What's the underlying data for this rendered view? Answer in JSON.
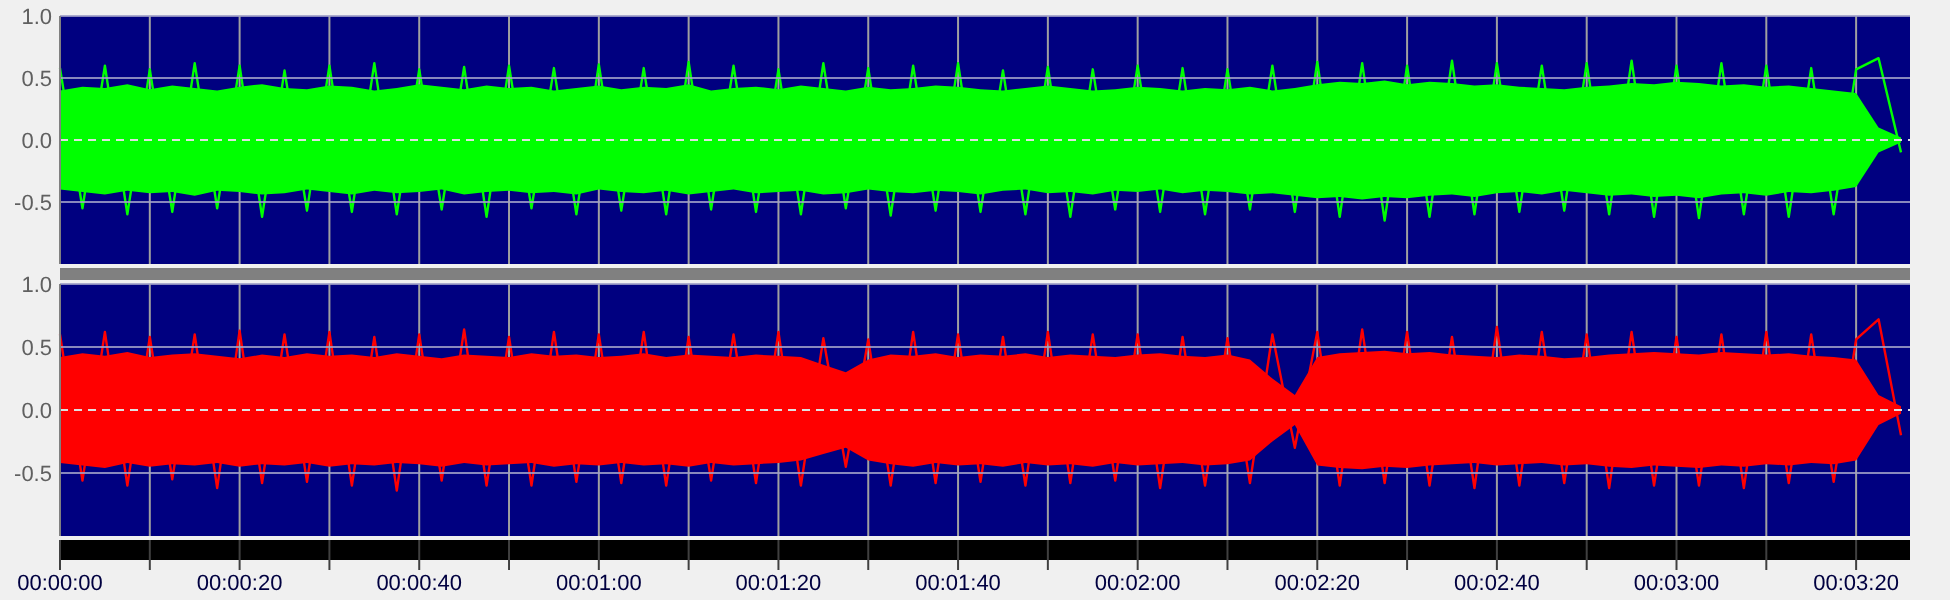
{
  "chart_data": [
    {
      "type": "line",
      "xlim": [
        0,
        206
      ],
      "ylim": [
        -1,
        1
      ],
      "yticks": [
        {
          "value": 1,
          "label": "1.0"
        },
        {
          "value": 0.5,
          "label": "0.5"
        },
        {
          "value": 0,
          "label": "0.0"
        },
        {
          "value": -0.5,
          "label": "-0.5"
        }
      ],
      "xticks": [
        {
          "value": 0,
          "label": null
        },
        {
          "value": 10,
          "label": null
        },
        {
          "value": 20,
          "label": null
        },
        {
          "value": 30,
          "label": null
        },
        {
          "value": 40,
          "label": null
        },
        {
          "value": 50,
          "label": null
        },
        {
          "value": 60,
          "label": null
        },
        {
          "value": 70,
          "label": null
        },
        {
          "value": 80,
          "label": null
        },
        {
          "value": 90,
          "label": null
        },
        {
          "value": 100,
          "label": null
        },
        {
          "value": 110,
          "label": null
        },
        {
          "value": 120,
          "label": null
        },
        {
          "value": 130,
          "label": null
        },
        {
          "value": 140,
          "label": null
        },
        {
          "value": 150,
          "label": null
        },
        {
          "value": 160,
          "label": null
        },
        {
          "value": 170,
          "label": null
        },
        {
          "value": 180,
          "label": null
        },
        {
          "value": 190,
          "label": null
        },
        {
          "value": 200,
          "label": null
        }
      ],
      "grid": true,
      "tick_labels": "y",
      "ref_lines": [
        {
          "axis": "y",
          "value": 0,
          "color": "#e0e0e0",
          "line_style": "dashed"
        }
      ],
      "series": [
        {
          "color": "#00ff00",
          "x": [
            0,
            2.5,
            5,
            7.5,
            10,
            12.5,
            15,
            17.5,
            20,
            22.5,
            25,
            27.5,
            30,
            32.5,
            35,
            37.5,
            40,
            42.5,
            45,
            47.5,
            50,
            52.5,
            55,
            57.5,
            60,
            62.5,
            65,
            67.5,
            70,
            72.5,
            75,
            77.5,
            80,
            82.5,
            85,
            87.5,
            90,
            92.5,
            95,
            97.5,
            100,
            102.5,
            105,
            107.5,
            110,
            112.5,
            115,
            117.5,
            120,
            122.5,
            125,
            127.5,
            130,
            132.5,
            135,
            137.5,
            140,
            142.5,
            145,
            147.5,
            150,
            152.5,
            155,
            157.5,
            160,
            162.5,
            165,
            167.5,
            170,
            172.5,
            175,
            177.5,
            180,
            182.5,
            185,
            187.5,
            190,
            192.5,
            195,
            197.5,
            200,
            202.5,
            205
          ],
          "values": [
            0.58,
            -0.55,
            0.6,
            -0.6,
            0.57,
            -0.58,
            0.62,
            -0.55,
            0.6,
            -0.62,
            0.56,
            -0.57,
            0.6,
            -0.58,
            0.62,
            -0.6,
            0.57,
            -0.56,
            0.59,
            -0.62,
            0.6,
            -0.55,
            0.58,
            -0.6,
            0.61,
            -0.57,
            0.58,
            -0.6,
            0.63,
            -0.56,
            0.6,
            -0.58,
            0.57,
            -0.6,
            0.62,
            -0.55,
            0.58,
            -0.61,
            0.6,
            -0.57,
            0.62,
            -0.58,
            0.56,
            -0.6,
            0.59,
            -0.62,
            0.57,
            -0.56,
            0.6,
            -0.58,
            0.58,
            -0.6,
            0.57,
            -0.56,
            0.6,
            -0.58,
            0.63,
            -0.62,
            0.62,
            -0.65,
            0.6,
            -0.62,
            0.64,
            -0.6,
            0.62,
            -0.58,
            0.6,
            -0.57,
            0.62,
            -0.6,
            0.64,
            -0.62,
            0.6,
            -0.63,
            0.62,
            -0.6,
            0.6,
            -0.62,
            0.58,
            -0.6,
            0.57,
            0.66,
            -0.1
          ],
          "upper": [
            0.4,
            0.43,
            0.42,
            0.45,
            0.41,
            0.44,
            0.42,
            0.4,
            0.43,
            0.45,
            0.42,
            0.41,
            0.44,
            0.43,
            0.4,
            0.42,
            0.45,
            0.43,
            0.41,
            0.44,
            0.42,
            0.43,
            0.4,
            0.42,
            0.44,
            0.41,
            0.43,
            0.42,
            0.45,
            0.4,
            0.42,
            0.43,
            0.41,
            0.44,
            0.42,
            0.4,
            0.43,
            0.41,
            0.42,
            0.44,
            0.43,
            0.41,
            0.4,
            0.42,
            0.44,
            0.42,
            0.4,
            0.41,
            0.43,
            0.42,
            0.4,
            0.42,
            0.41,
            0.43,
            0.4,
            0.42,
            0.45,
            0.47,
            0.46,
            0.48,
            0.45,
            0.47,
            0.46,
            0.44,
            0.45,
            0.43,
            0.42,
            0.41,
            0.43,
            0.44,
            0.46,
            0.45,
            0.47,
            0.46,
            0.44,
            0.45,
            0.43,
            0.44,
            0.42,
            0.4,
            0.38,
            0.1,
            0.02
          ],
          "lower": [
            -0.4,
            -0.42,
            -0.44,
            -0.41,
            -0.43,
            -0.42,
            -0.45,
            -0.41,
            -0.42,
            -0.44,
            -0.43,
            -0.4,
            -0.42,
            -0.44,
            -0.41,
            -0.43,
            -0.42,
            -0.4,
            -0.44,
            -0.42,
            -0.41,
            -0.43,
            -0.42,
            -0.44,
            -0.4,
            -0.42,
            -0.43,
            -0.41,
            -0.44,
            -0.42,
            -0.4,
            -0.43,
            -0.42,
            -0.41,
            -0.44,
            -0.43,
            -0.4,
            -0.42,
            -0.43,
            -0.41,
            -0.42,
            -0.44,
            -0.41,
            -0.4,
            -0.43,
            -0.42,
            -0.44,
            -0.41,
            -0.42,
            -0.4,
            -0.43,
            -0.41,
            -0.42,
            -0.44,
            -0.43,
            -0.45,
            -0.47,
            -0.46,
            -0.48,
            -0.46,
            -0.47,
            -0.45,
            -0.44,
            -0.46,
            -0.43,
            -0.42,
            -0.44,
            -0.41,
            -0.43,
            -0.45,
            -0.44,
            -0.46,
            -0.45,
            -0.47,
            -0.44,
            -0.43,
            -0.45,
            -0.42,
            -0.43,
            -0.41,
            -0.38,
            -0.1,
            -0.02
          ]
        }
      ]
    },
    {
      "type": "line",
      "xlim": [
        0,
        206
      ],
      "ylim": [
        -1,
        1
      ],
      "yticks": [
        {
          "value": 1,
          "label": "1.0"
        },
        {
          "value": 0.5,
          "label": "0.5"
        },
        {
          "value": 0,
          "label": "0.0"
        },
        {
          "value": -0.5,
          "label": "-0.5"
        }
      ],
      "xticks": [
        {
          "value": 0,
          "label": "00:00:00"
        },
        {
          "value": 10,
          "label": null
        },
        {
          "value": 20,
          "label": "00:00:20"
        },
        {
          "value": 30,
          "label": null
        },
        {
          "value": 40,
          "label": "00:00:40"
        },
        {
          "value": 50,
          "label": null
        },
        {
          "value": 60,
          "label": "00:01:00"
        },
        {
          "value": 70,
          "label": null
        },
        {
          "value": 80,
          "label": "00:01:20"
        },
        {
          "value": 90,
          "label": null
        },
        {
          "value": 100,
          "label": "00:01:40"
        },
        {
          "value": 110,
          "label": null
        },
        {
          "value": 120,
          "label": "00:02:00"
        },
        {
          "value": 130,
          "label": null
        },
        {
          "value": 140,
          "label": "00:02:20"
        },
        {
          "value": 150,
          "label": null
        },
        {
          "value": 160,
          "label": "00:02:40"
        },
        {
          "value": 170,
          "label": null
        },
        {
          "value": 180,
          "label": "00:03:00"
        },
        {
          "value": 190,
          "label": null
        },
        {
          "value": 200,
          "label": "00:03:20"
        }
      ],
      "grid": true,
      "ref_lines": [
        {
          "axis": "y",
          "value": 0,
          "color": "#e0e0e0",
          "line_style": "dashed"
        }
      ],
      "series": [
        {
          "color": "#ff0000",
          "x": [
            0,
            2.5,
            5,
            7.5,
            10,
            12.5,
            15,
            17.5,
            20,
            22.5,
            25,
            27.5,
            30,
            32.5,
            35,
            37.5,
            40,
            42.5,
            45,
            47.5,
            50,
            52.5,
            55,
            57.5,
            60,
            62.5,
            65,
            67.5,
            70,
            72.5,
            75,
            77.5,
            80,
            82.5,
            85,
            87.5,
            90,
            92.5,
            95,
            97.5,
            100,
            102.5,
            105,
            107.5,
            110,
            112.5,
            115,
            117.5,
            120,
            122.5,
            125,
            127.5,
            130,
            132.5,
            135,
            137.5,
            140,
            142.5,
            145,
            147.5,
            150,
            152.5,
            155,
            157.5,
            160,
            162.5,
            165,
            167.5,
            170,
            172.5,
            175,
            177.5,
            180,
            182.5,
            185,
            187.5,
            190,
            192.5,
            195,
            197.5,
            200,
            202.5,
            205
          ],
          "values": [
            0.6,
            -0.56,
            0.62,
            -0.6,
            0.58,
            -0.55,
            0.6,
            -0.62,
            0.63,
            -0.58,
            0.6,
            -0.57,
            0.62,
            -0.6,
            0.58,
            -0.64,
            0.6,
            -0.56,
            0.64,
            -0.6,
            0.58,
            -0.6,
            0.62,
            -0.57,
            0.6,
            -0.58,
            0.62,
            -0.6,
            0.58,
            -0.56,
            0.6,
            -0.58,
            0.62,
            -0.6,
            0.57,
            -0.45,
            0.56,
            -0.6,
            0.62,
            -0.58,
            0.6,
            -0.57,
            0.58,
            -0.6,
            0.62,
            -0.58,
            0.6,
            -0.56,
            0.6,
            -0.62,
            0.58,
            -0.6,
            0.57,
            -0.58,
            0.6,
            -0.3,
            0.62,
            -0.6,
            0.64,
            -0.58,
            0.62,
            -0.6,
            0.58,
            -0.62,
            0.66,
            -0.6,
            0.62,
            -0.58,
            0.6,
            -0.62,
            0.62,
            -0.6,
            0.58,
            -0.6,
            0.6,
            -0.62,
            0.62,
            -0.58,
            0.6,
            -0.57,
            0.56,
            0.72,
            -0.2
          ],
          "upper": [
            0.42,
            0.45,
            0.43,
            0.46,
            0.42,
            0.44,
            0.45,
            0.43,
            0.41,
            0.44,
            0.42,
            0.45,
            0.43,
            0.44,
            0.42,
            0.45,
            0.43,
            0.41,
            0.44,
            0.43,
            0.42,
            0.45,
            0.43,
            0.44,
            0.42,
            0.43,
            0.45,
            0.42,
            0.44,
            0.43,
            0.42,
            0.44,
            0.43,
            0.42,
            0.36,
            0.3,
            0.4,
            0.44,
            0.43,
            0.45,
            0.42,
            0.44,
            0.43,
            0.45,
            0.42,
            0.44,
            0.43,
            0.42,
            0.44,
            0.45,
            0.43,
            0.42,
            0.44,
            0.4,
            0.25,
            0.12,
            0.42,
            0.45,
            0.46,
            0.47,
            0.45,
            0.46,
            0.44,
            0.43,
            0.42,
            0.44,
            0.43,
            0.41,
            0.42,
            0.44,
            0.45,
            0.46,
            0.45,
            0.44,
            0.46,
            0.45,
            0.44,
            0.45,
            0.43,
            0.42,
            0.4,
            0.12,
            0.03
          ],
          "lower": [
            -0.42,
            -0.44,
            -0.46,
            -0.42,
            -0.45,
            -0.43,
            -0.44,
            -0.42,
            -0.45,
            -0.43,
            -0.44,
            -0.42,
            -0.45,
            -0.43,
            -0.44,
            -0.42,
            -0.43,
            -0.45,
            -0.42,
            -0.44,
            -0.43,
            -0.42,
            -0.45,
            -0.43,
            -0.44,
            -0.42,
            -0.44,
            -0.43,
            -0.45,
            -0.42,
            -0.44,
            -0.43,
            -0.42,
            -0.4,
            -0.35,
            -0.3,
            -0.4,
            -0.43,
            -0.45,
            -0.42,
            -0.44,
            -0.43,
            -0.45,
            -0.42,
            -0.44,
            -0.43,
            -0.45,
            -0.42,
            -0.44,
            -0.43,
            -0.42,
            -0.44,
            -0.43,
            -0.4,
            -0.25,
            -0.12,
            -0.44,
            -0.46,
            -0.47,
            -0.45,
            -0.46,
            -0.44,
            -0.43,
            -0.42,
            -0.44,
            -0.43,
            -0.42,
            -0.44,
            -0.43,
            -0.45,
            -0.46,
            -0.44,
            -0.45,
            -0.46,
            -0.44,
            -0.45,
            -0.43,
            -0.44,
            -0.42,
            -0.43,
            -0.4,
            -0.12,
            -0.03
          ]
        }
      ]
    }
  ]
}
